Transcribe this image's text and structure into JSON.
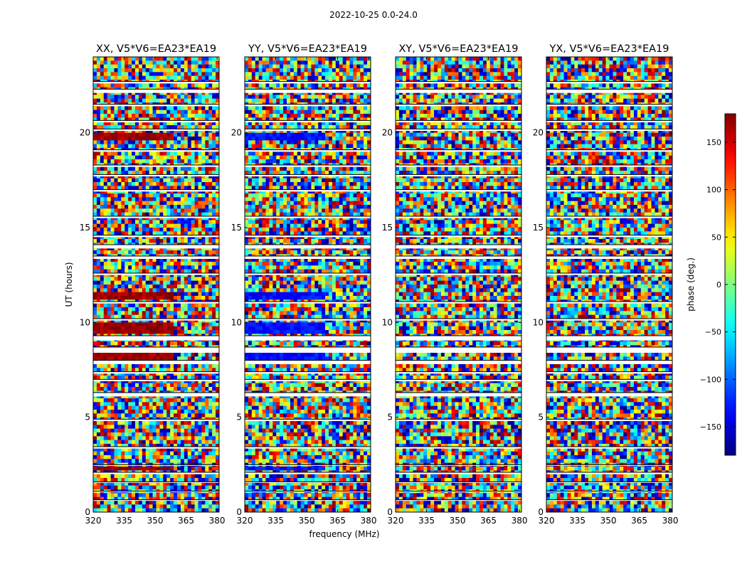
{
  "figure": {
    "suptitle": "2022-10-25 0.0-24.0"
  },
  "chart_data": {
    "type": "heatmap",
    "description_kind": "phase waterfall, time vs frequency",
    "shared": {
      "xlabel": "frequency (MHz)",
      "ylabel": "UT (hours)",
      "xlim": [
        320,
        381
      ],
      "ylim": [
        0,
        24
      ],
      "xticks": [
        320,
        335,
        350,
        365,
        380
      ],
      "xtick_labels": [
        "320",
        "335",
        "350",
        "365",
        "380"
      ],
      "yticks": [
        0,
        5,
        10,
        15,
        20
      ],
      "ytick_labels": [
        "0",
        "5",
        "10",
        "15",
        "20"
      ]
    },
    "panels": [
      {
        "id": "xx",
        "title": "XX, V5*V6=EA23*EA19",
        "coherent_phase_deg": 170
      },
      {
        "id": "yy",
        "title": "YY, V5*V6=EA23*EA19",
        "coherent_phase_deg": -130
      },
      {
        "id": "xy",
        "title": "XY, V5*V6=EA23*EA19",
        "coherent_phase_deg": null
      },
      {
        "id": "yx",
        "title": "YX, V5*V6=EA23*EA19",
        "coherent_phase_deg": null
      }
    ],
    "colorbar": {
      "label": "phase (deg.)",
      "range": [
        -180,
        180
      ],
      "ticks": [
        -150,
        -100,
        -50,
        0,
        50,
        100,
        150
      ],
      "tick_labels": [
        "−150",
        "−100",
        "−50",
        "0",
        "50",
        "100",
        "150"
      ],
      "colormap": "jet"
    },
    "coherent_time_ranges_hours": [
      [
        9.4,
        10.0
      ],
      [
        11.2,
        11.6
      ],
      [
        8.1,
        8.3
      ],
      [
        19.6,
        19.9
      ],
      [
        2.2,
        2.4
      ]
    ],
    "flagged_gaps_hours": [
      [
        0.6,
        0.65
      ],
      [
        1.05,
        1.1
      ],
      [
        1.55,
        1.6
      ],
      [
        2.0,
        2.1
      ],
      [
        2.45,
        2.5
      ],
      [
        3.35,
        3.45
      ],
      [
        4.8,
        4.9
      ],
      [
        6.1,
        6.3
      ],
      [
        6.9,
        7.0
      ],
      [
        7.3,
        7.4
      ],
      [
        7.8,
        8.0
      ],
      [
        8.4,
        8.7
      ],
      [
        9.05,
        9.3
      ],
      [
        10.1,
        10.2
      ],
      [
        11.0,
        11.1
      ],
      [
        12.5,
        12.6
      ],
      [
        13.35,
        13.5
      ],
      [
        13.9,
        14.1
      ],
      [
        14.5,
        14.6
      ],
      [
        15.5,
        15.6
      ],
      [
        16.9,
        17.0
      ],
      [
        17.7,
        17.8
      ],
      [
        18.2,
        18.3
      ],
      [
        19.0,
        19.1
      ],
      [
        20.1,
        20.2
      ],
      [
        20.55,
        20.65
      ],
      [
        21.4,
        21.5
      ],
      [
        22.1,
        22.3
      ],
      [
        22.6,
        22.7
      ]
    ]
  }
}
